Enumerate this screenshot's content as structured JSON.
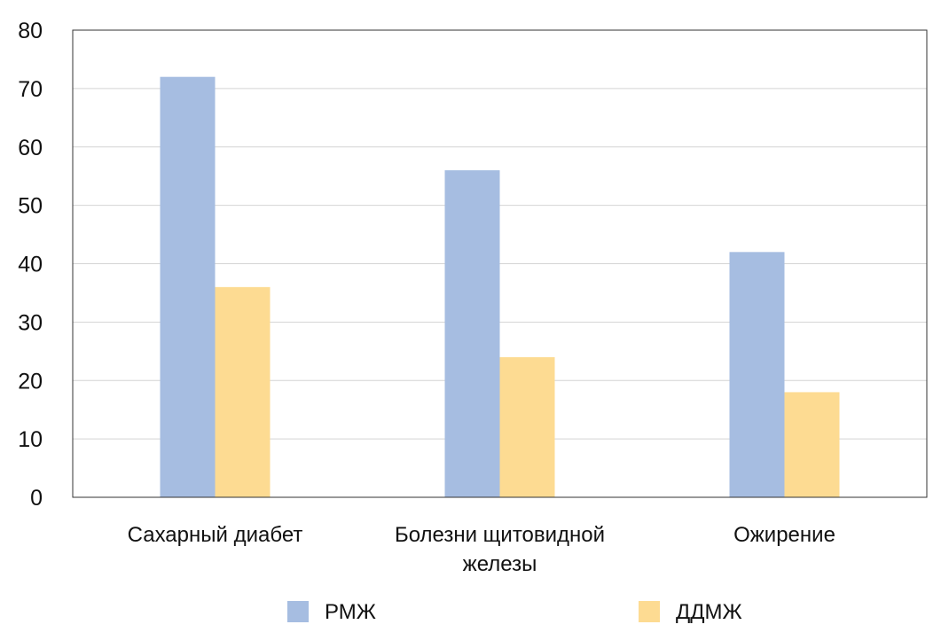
{
  "chart_data": {
    "type": "bar",
    "categories": [
      [
        "Сахарный диабет"
      ],
      [
        "Болезни щитовидной",
        "железы"
      ],
      [
        "Ожирение"
      ]
    ],
    "series": [
      {
        "name": "РМЖ",
        "color": "#a6bde1",
        "values": [
          72,
          56,
          42
        ]
      },
      {
        "name": "ДДМЖ",
        "color": "#fddb92",
        "values": [
          36,
          24,
          18
        ]
      }
    ],
    "ylim": [
      0,
      80
    ],
    "yticks": [
      0,
      10,
      20,
      30,
      40,
      50,
      60,
      70,
      80
    ],
    "grid": true,
    "legend_position": "bottom",
    "title": "",
    "xlabel": "",
    "ylabel": ""
  }
}
